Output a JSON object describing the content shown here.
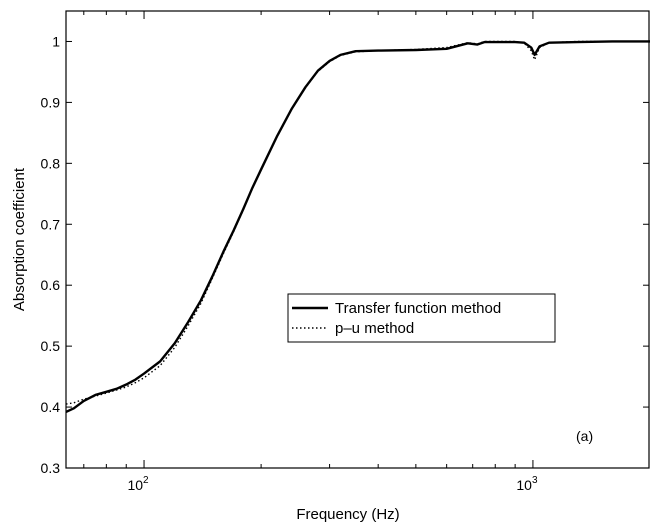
{
  "chart_data": {
    "type": "line",
    "title": "",
    "xlabel": "Frequency (Hz)",
    "ylabel": "Absorption coefficient",
    "xscale": "log",
    "xlim": [
      63,
      2000
    ],
    "ylim": [
      0.3,
      1.05
    ],
    "yticks": [
      0.3,
      0.4,
      0.5,
      0.6,
      0.7,
      0.8,
      0.9,
      1
    ],
    "ytick_labels": [
      "0.3",
      "0.4",
      "0.5",
      "0.6",
      "0.7",
      "0.8",
      "0.9",
      "1"
    ],
    "xticks": [
      {
        "value": 100,
        "base": "10",
        "exp": "2"
      },
      {
        "value": 1000,
        "base": "10",
        "exp": "3"
      }
    ],
    "grid": false,
    "legend_position": "center-right",
    "annotation": "(a)",
    "series": [
      {
        "name": "Transfer function method",
        "style": "solid",
        "color": "#000000",
        "points": [
          [
            63,
            0.392
          ],
          [
            66,
            0.398
          ],
          [
            70,
            0.41
          ],
          [
            75,
            0.42
          ],
          [
            80,
            0.425
          ],
          [
            85,
            0.43
          ],
          [
            90,
            0.437
          ],
          [
            95,
            0.445
          ],
          [
            100,
            0.455
          ],
          [
            110,
            0.475
          ],
          [
            120,
            0.505
          ],
          [
            130,
            0.54
          ],
          [
            140,
            0.575
          ],
          [
            150,
            0.615
          ],
          [
            160,
            0.655
          ],
          [
            170,
            0.69
          ],
          [
            180,
            0.725
          ],
          [
            190,
            0.76
          ],
          [
            200,
            0.79
          ],
          [
            220,
            0.845
          ],
          [
            240,
            0.89
          ],
          [
            260,
            0.925
          ],
          [
            280,
            0.952
          ],
          [
            300,
            0.968
          ],
          [
            320,
            0.978
          ],
          [
            350,
            0.984
          ],
          [
            400,
            0.985
          ],
          [
            500,
            0.986
          ],
          [
            600,
            0.988
          ],
          [
            680,
            0.997
          ],
          [
            720,
            0.995
          ],
          [
            750,
            0.999
          ],
          [
            800,
            0.999
          ],
          [
            900,
            0.999
          ],
          [
            950,
            0.998
          ],
          [
            990,
            0.99
          ],
          [
            1010,
            0.978
          ],
          [
            1040,
            0.992
          ],
          [
            1100,
            0.998
          ],
          [
            1300,
            0.999
          ],
          [
            1600,
            1.0
          ],
          [
            2000,
            1.0
          ]
        ]
      },
      {
        "name": "p–u method",
        "style": "dotted",
        "color": "#000000",
        "points": [
          [
            63,
            0.405
          ],
          [
            66,
            0.407
          ],
          [
            70,
            0.413
          ],
          [
            75,
            0.418
          ],
          [
            80,
            0.423
          ],
          [
            85,
            0.428
          ],
          [
            90,
            0.433
          ],
          [
            95,
            0.44
          ],
          [
            100,
            0.448
          ],
          [
            110,
            0.468
          ],
          [
            120,
            0.498
          ],
          [
            130,
            0.534
          ],
          [
            140,
            0.57
          ],
          [
            150,
            0.612
          ],
          [
            160,
            0.652
          ],
          [
            170,
            0.688
          ],
          [
            180,
            0.724
          ],
          [
            190,
            0.759
          ],
          [
            200,
            0.789
          ],
          [
            220,
            0.844
          ],
          [
            240,
            0.889
          ],
          [
            260,
            0.924
          ],
          [
            280,
            0.951
          ],
          [
            300,
            0.967
          ],
          [
            320,
            0.977
          ],
          [
            350,
            0.983
          ],
          [
            400,
            0.985
          ],
          [
            500,
            0.987
          ],
          [
            600,
            0.99
          ],
          [
            680,
            0.998
          ],
          [
            720,
            0.996
          ],
          [
            750,
            1.0
          ],
          [
            800,
            1.0
          ],
          [
            900,
            1.0
          ],
          [
            950,
            0.997
          ],
          [
            990,
            0.985
          ],
          [
            1010,
            0.97
          ],
          [
            1040,
            0.99
          ],
          [
            1100,
            0.998
          ],
          [
            1300,
            1.0
          ],
          [
            1600,
            1.0
          ],
          [
            2000,
            1.0
          ]
        ]
      }
    ]
  }
}
